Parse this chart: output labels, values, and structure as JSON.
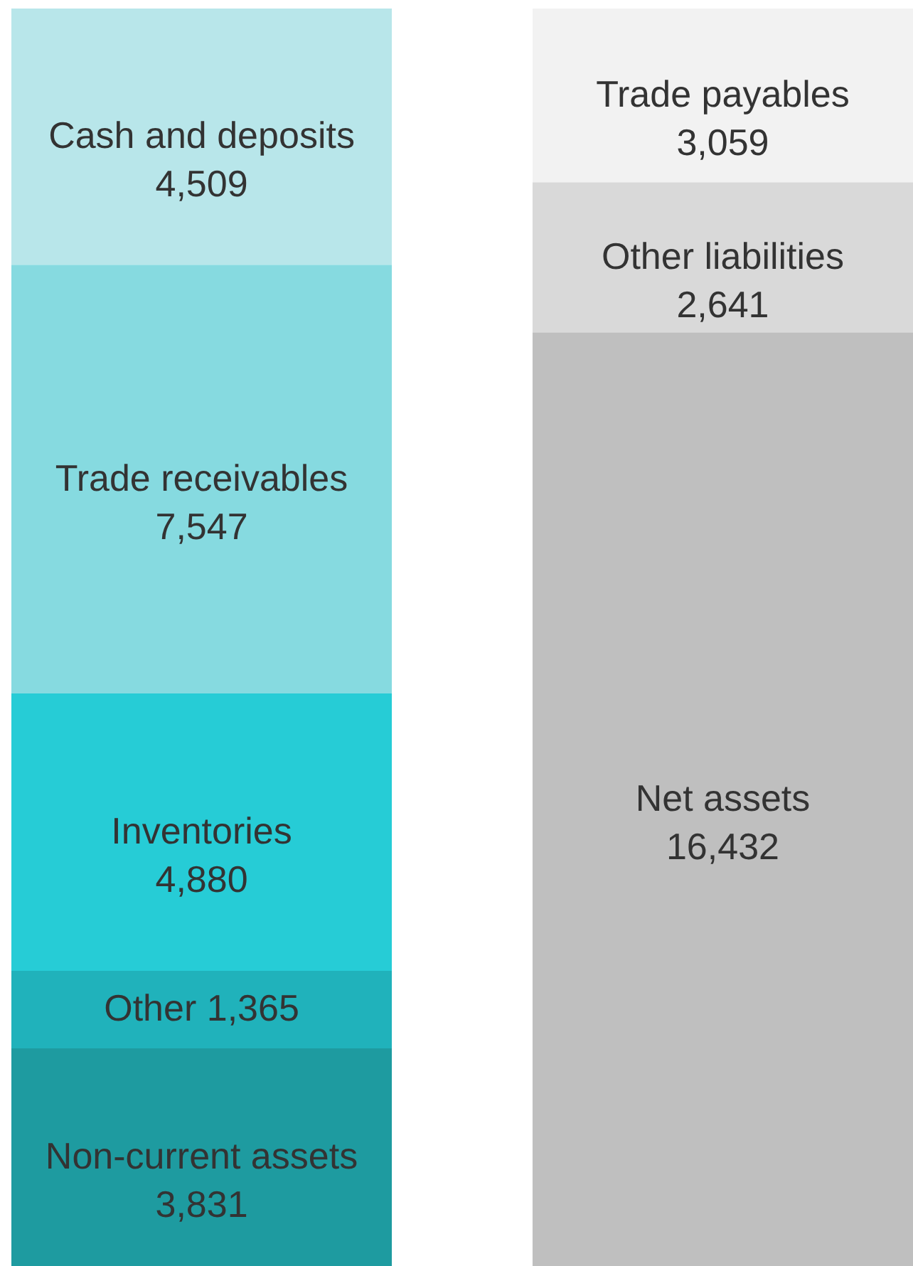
{
  "chart_data": {
    "type": "bar",
    "stacked": true,
    "categories": [
      null,
      null
    ],
    "series": [
      {
        "name": "Non-current assets",
        "color": "#1e9ba0",
        "values": [
          3831,
          null
        ],
        "value_labels": [
          "3,831",
          null
        ]
      },
      {
        "name": "Other",
        "color": "#20b2bb",
        "values": [
          1365,
          null
        ],
        "value_labels": [
          "1,365",
          null
        ]
      },
      {
        "name": "Inventories",
        "color": "#26ccd6",
        "values": [
          4880,
          null
        ],
        "value_labels": [
          "4,880",
          null
        ]
      },
      {
        "name": "Trade receivables",
        "color": "#86dae0",
        "values": [
          7547,
          null
        ],
        "value_labels": [
          "7,547",
          null
        ]
      },
      {
        "name": "Cash and deposits",
        "color": "#b8e6ea",
        "values": [
          4509,
          null
        ],
        "value_labels": [
          "4,509",
          null
        ]
      },
      {
        "name": "Net assets",
        "color": "#bfbfbf",
        "values": [
          null,
          16432
        ],
        "value_labels": [
          null,
          "16,432"
        ]
      },
      {
        "name": "Other liabilities",
        "color": "#d9d9d9",
        "values": [
          null,
          2641
        ],
        "value_labels": [
          null,
          "2,641"
        ]
      },
      {
        "name": "Trade payables",
        "color": "#f2f2f2",
        "values": [
          null,
          3059
        ],
        "value_labels": [
          null,
          "3,059"
        ]
      }
    ]
  }
}
